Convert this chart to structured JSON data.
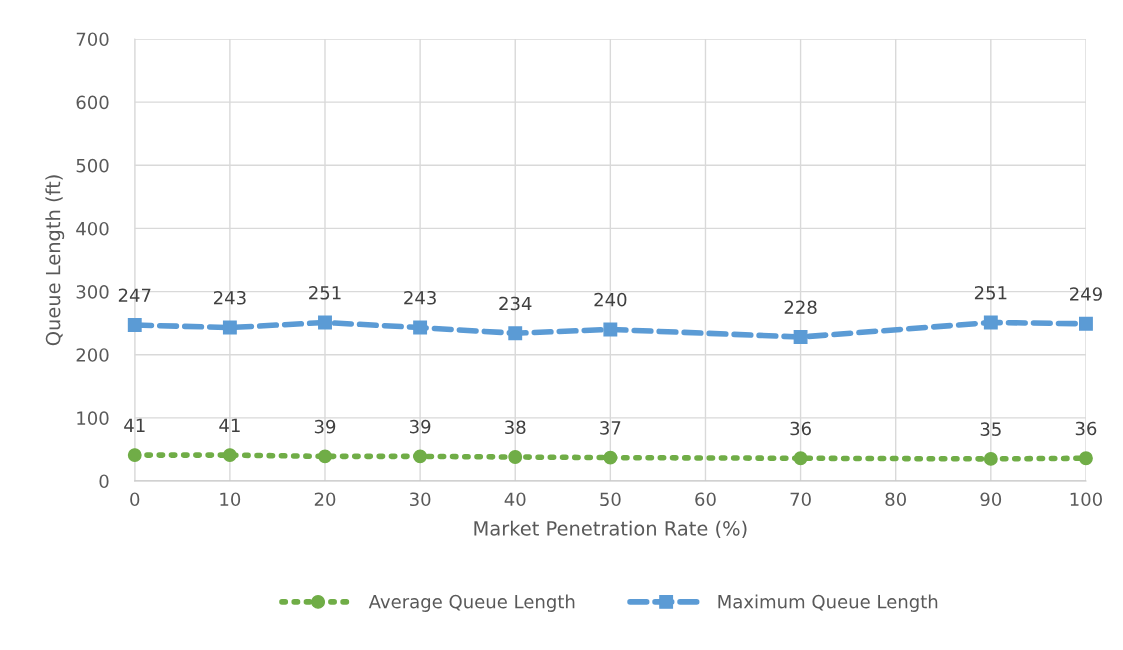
{
  "chart_data": {
    "type": "line",
    "xlabel": "Market Penetration Rate (%)",
    "ylabel": "Queue Length (ft)",
    "x": [
      0,
      10,
      20,
      30,
      40,
      50,
      70,
      90,
      100
    ],
    "series": [
      {
        "name": "Average Queue Length",
        "color": "#70ad47",
        "marker": "circle",
        "line_style": "dotted",
        "values": [
          41,
          41,
          39,
          39,
          38,
          37,
          36,
          35,
          36
        ]
      },
      {
        "name": "Maximum Queue Length",
        "color": "#5b9bd5",
        "marker": "square",
        "line_style": "dashed",
        "values": [
          247,
          243,
          251,
          243,
          234,
          240,
          228,
          251,
          249
        ]
      }
    ],
    "xlim": [
      0,
      100
    ],
    "xticks": [
      0,
      10,
      20,
      30,
      40,
      50,
      60,
      70,
      80,
      90,
      100
    ],
    "ylim": [
      0,
      700
    ],
    "yticks": [
      0,
      100,
      200,
      300,
      400,
      500,
      600,
      700
    ],
    "grid": true,
    "legend": "bottom",
    "data_labels": true
  }
}
